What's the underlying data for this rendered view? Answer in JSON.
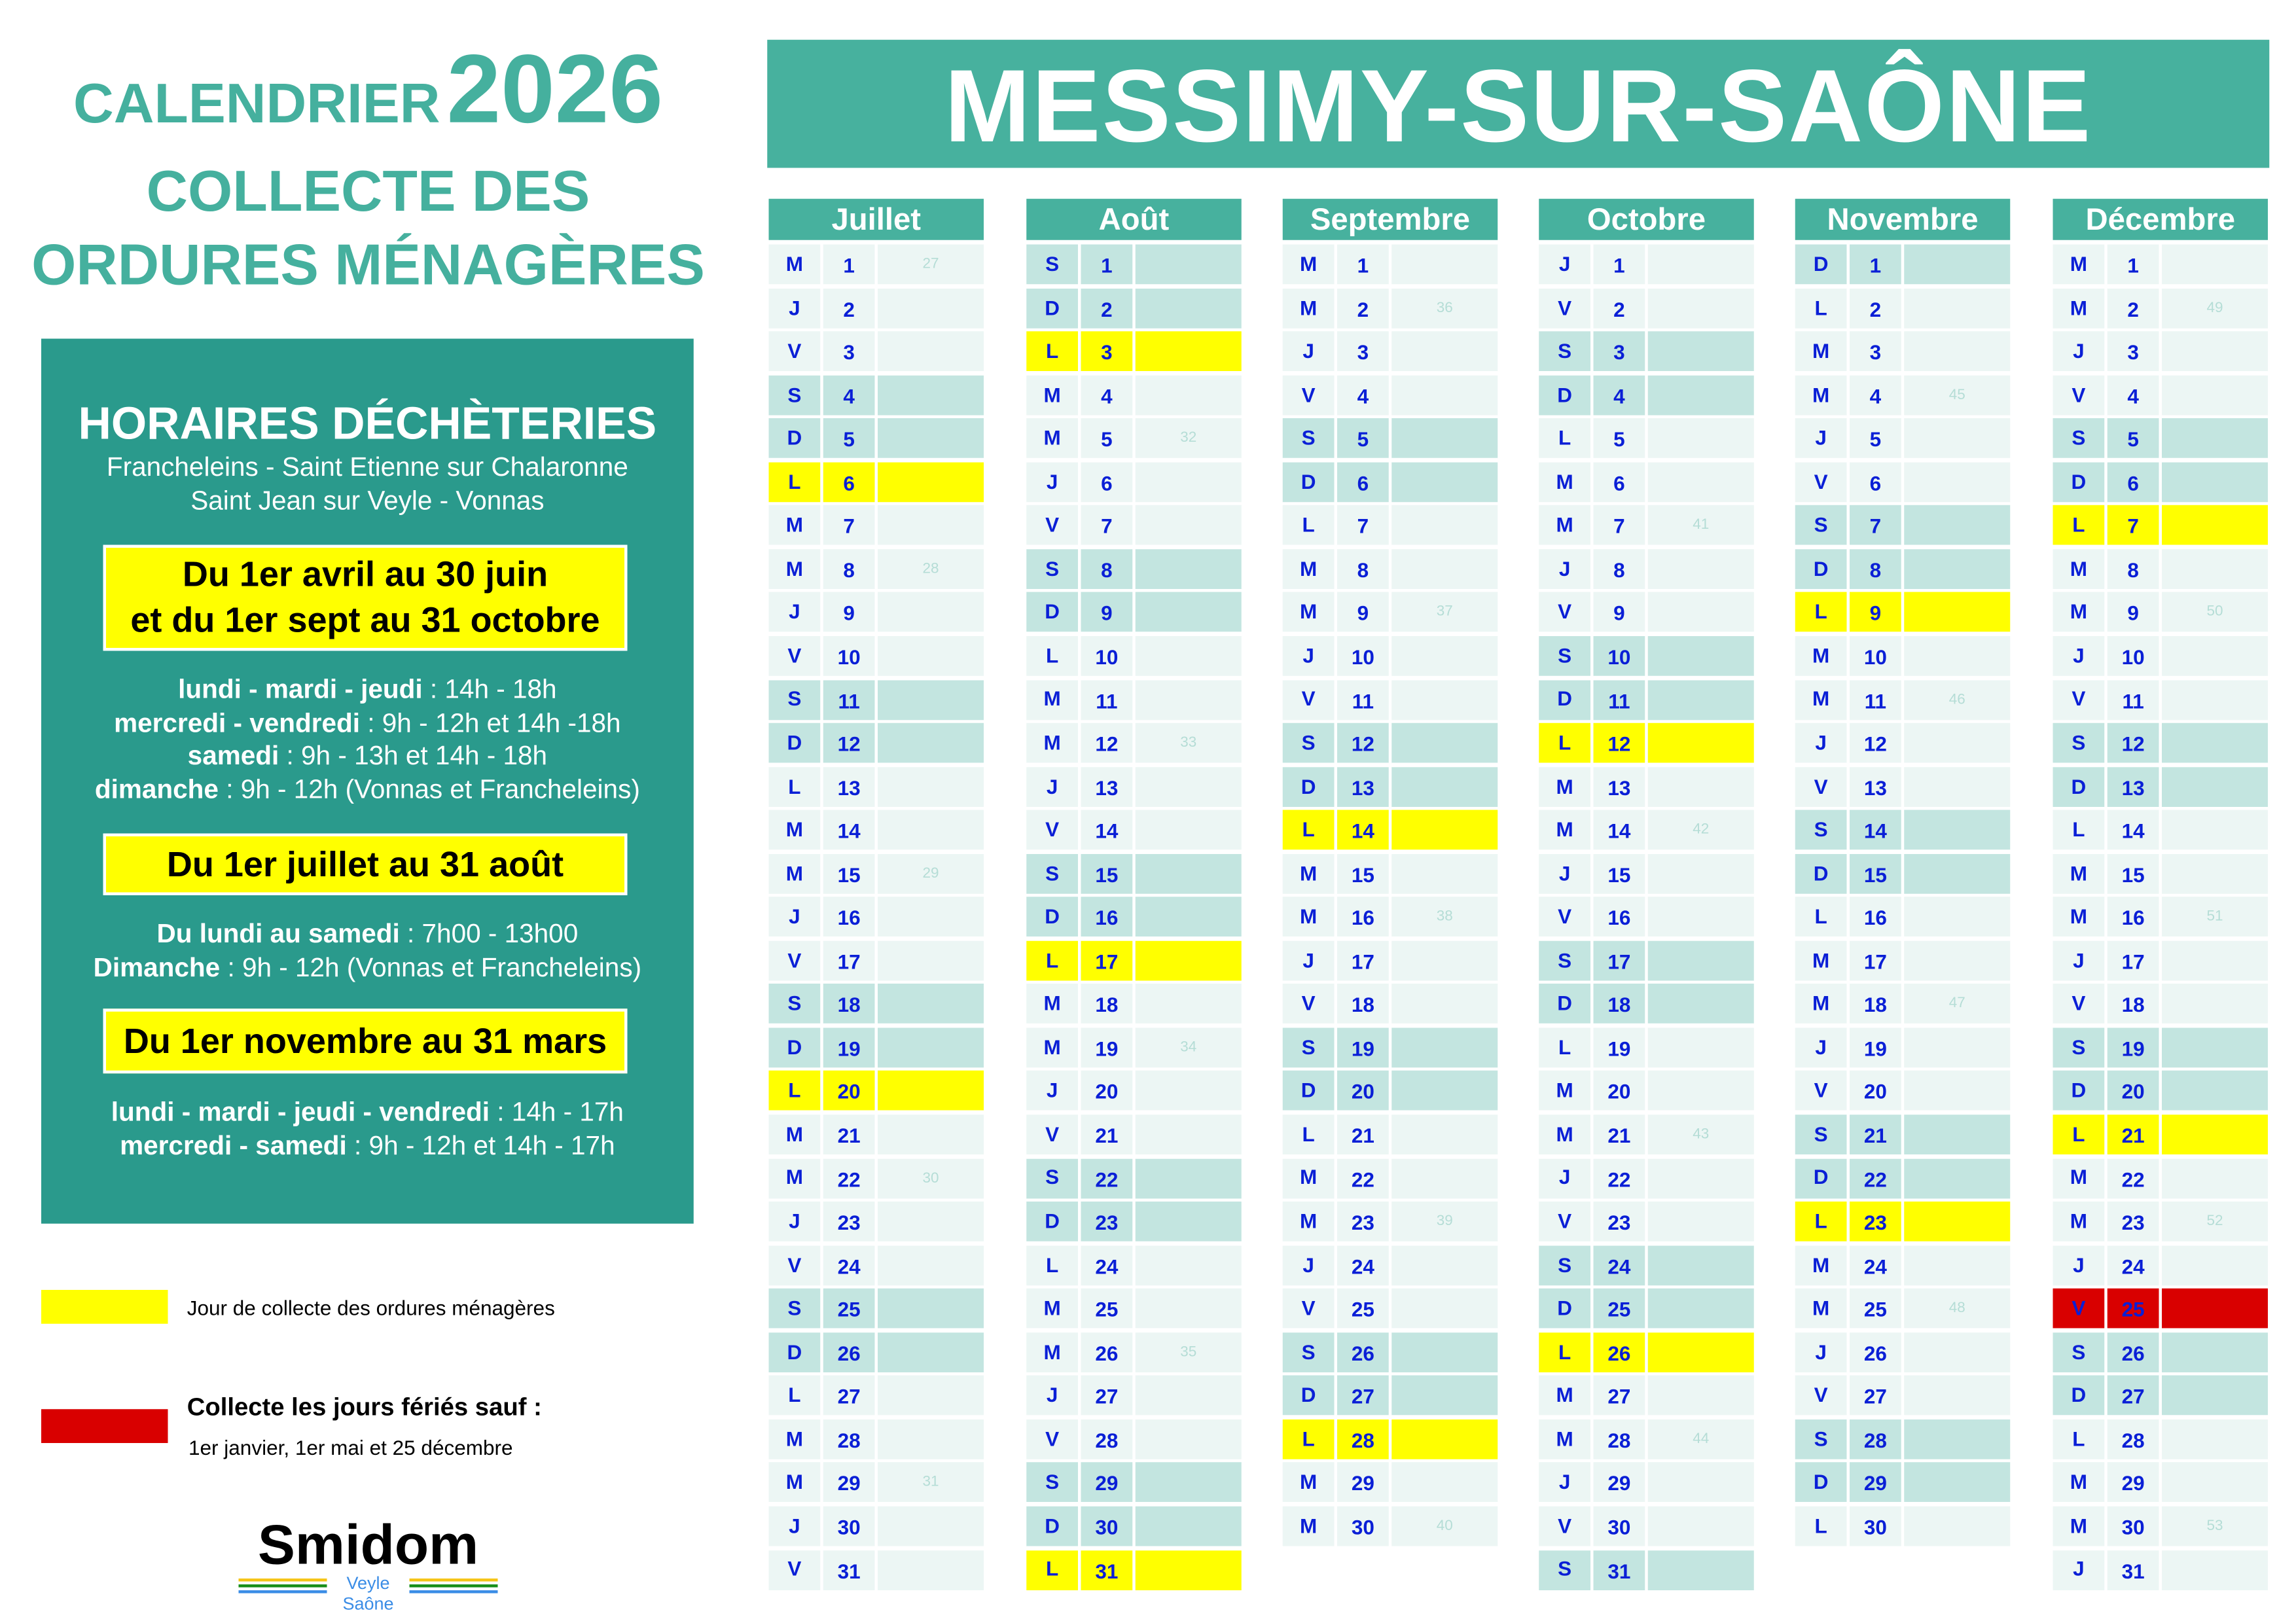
{
  "title": {
    "calendrier": "CALENDRIER",
    "year": "2026",
    "line1": "COLLECTE DES",
    "line2": "ORDURES MÉNAGÈRES"
  },
  "commune": "MESSIMY-SUR-SAÔNE",
  "horaires": {
    "heading": "HORAIRES DÉCHÈTERIES",
    "sites1": "Francheleins - Saint Etienne sur Chalaronne",
    "sites2": "Saint Jean sur Veyle - Vonnas",
    "periods": [
      {
        "title1": "Du 1er avril au 30 juin",
        "title2": "et du 1er sept au 31 octobre",
        "lines": [
          [
            "lundi - mardi - jeudi",
            " : 14h - 18h"
          ],
          [
            "mercredi - vendredi",
            " : 9h - 12h et 14h -18h"
          ],
          [
            "samedi",
            " : 9h - 13h et 14h - 18h"
          ],
          [
            "dimanche",
            " : 9h - 12h (Vonnas et Francheleins)"
          ]
        ]
      },
      {
        "title1": "Du 1er juillet au 31 août",
        "lines": [
          [
            "Du lundi au samedi",
            " : 7h00 - 13h00"
          ],
          [
            "Dimanche",
            " : 9h - 12h (Vonnas et Francheleins)"
          ]
        ]
      },
      {
        "title1": "Du 1er novembre au 31 mars",
        "lines": [
          [
            "lundi - mardi - jeudi - vendredi",
            " : 14h - 17h"
          ],
          [
            "mercredi - samedi",
            " : 9h - 12h et 14h - 17h"
          ]
        ]
      }
    ]
  },
  "legend": {
    "collection": "Jour de collecte des ordures ménagères",
    "holiday_title": "Collecte les jours fériés sauf :",
    "holiday_detail": "1er janvier, 1er mai et 25 décembre"
  },
  "logo": {
    "name": "Smidom",
    "sub": "Veyle Saône"
  },
  "colors": {
    "accent": "#47B19E",
    "panel": "#2A9A8C",
    "collection": "#FFFF00",
    "holiday": "#D90000",
    "weekend": "#C3E5E0",
    "weekday": "#ECF6F4",
    "day_text": "#0A1FD6"
  },
  "months": [
    {
      "name": "Juillet",
      "letters": "MJVSDLMMJVSDLMMJVSDLMMJVSDLMMJV",
      "weeks": {
        "1": "27",
        "8": "28",
        "15": "29",
        "22": "30",
        "29": "31"
      },
      "collection_days": [
        6,
        20
      ],
      "holiday_days": []
    },
    {
      "name": "Août",
      "letters": "SDLMMJVSDLMMJVSDLMMJVSDLMMJVSDL",
      "weeks": {
        "5": "32",
        "12": "33",
        "19": "34",
        "26": "35"
      },
      "collection_days": [
        3,
        17,
        31
      ],
      "holiday_days": []
    },
    {
      "name": "Septembre",
      "letters": "MMJVSDLMMJVSDLMMJVSDLMMJVSDLMM",
      "weeks": {
        "2": "36",
        "9": "37",
        "16": "38",
        "23": "39",
        "30": "40"
      },
      "collection_days": [
        14,
        28
      ],
      "holiday_days": []
    },
    {
      "name": "Octobre",
      "letters": "JVSDLMMJVSDLMMJVSDLMMJVSDLMMJVS",
      "weeks": {
        "7": "41",
        "14": "42",
        "21": "43",
        "28": "44"
      },
      "collection_days": [
        12,
        26
      ],
      "holiday_days": []
    },
    {
      "name": "Novembre",
      "letters": "DLMMJVSDLMMJVSDLMMJVSDLMMJVSDL",
      "weeks": {
        "4": "45",
        "11": "46",
        "18": "47",
        "25": "48"
      },
      "collection_days": [
        9,
        23
      ],
      "holiday_days": []
    },
    {
      "name": "Décembre",
      "letters": "MMJVSDLMMJVSDLMMJVSDLMMJVSDLMMJ",
      "weeks": {
        "2": "49",
        "9": "50",
        "16": "51",
        "23": "52",
        "30": "53"
      },
      "collection_days": [
        7,
        21
      ],
      "holiday_days": [
        25
      ]
    }
  ]
}
